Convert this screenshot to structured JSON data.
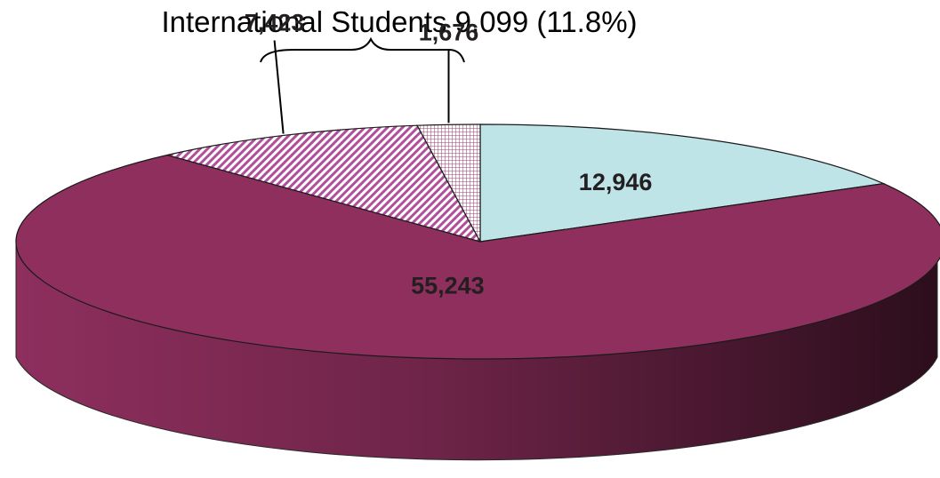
{
  "chart_data": {
    "type": "pie",
    "style": "3d",
    "title": "",
    "slices": [
      {
        "value": 12946,
        "label": "12,946",
        "color": "#bfe4e8",
        "fill": "solid"
      },
      {
        "value": 55243,
        "label": "55,243",
        "color": "#8e2f5e",
        "fill": "solid"
      },
      {
        "value": 7423,
        "label": "7,423",
        "color": "#b04f9a",
        "fill": "diagonal-hatch"
      },
      {
        "value": 1676,
        "label": "1,676",
        "color": "#9b3a6c",
        "fill": "grid-hatch"
      }
    ],
    "group_annotation": {
      "text": "International Students 9,099 (11.8%)",
      "covers_labels": [
        "7,423",
        "1,676"
      ]
    }
  }
}
